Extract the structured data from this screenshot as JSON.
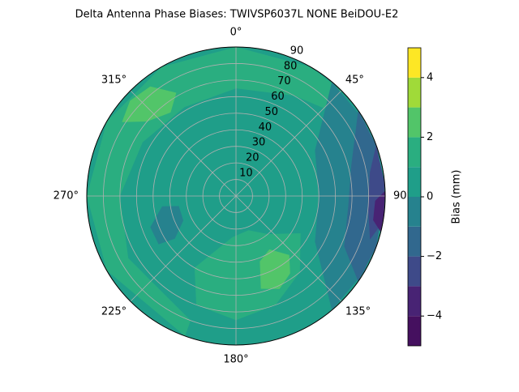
{
  "chart_data": {
    "type": "polar_contour",
    "title": "Delta Antenna Phase Biases: TWIVSP6037L     NONE BeiDOU-E2",
    "rlim": [
      0,
      90
    ],
    "rticks": [
      10,
      20,
      30,
      40,
      50,
      60,
      70,
      80,
      90
    ],
    "thetaticks": [
      {
        "value": 0,
        "label": "0°"
      },
      {
        "value": 45,
        "label": "45°"
      },
      {
        "value": 90,
        "label": "90°"
      },
      {
        "value": 135,
        "label": "135°"
      },
      {
        "value": 180,
        "label": "180°"
      },
      {
        "value": 225,
        "label": "225°"
      },
      {
        "value": 270,
        "label": "270°"
      },
      {
        "value": 315,
        "label": "315°"
      }
    ],
    "grid": true,
    "levels": [
      -5,
      -4,
      -3,
      -2,
      -1,
      0,
      1,
      2,
      3,
      4,
      5
    ],
    "colors": [
      "#45105f",
      "#482374",
      "#3e4a89",
      "#31688e",
      "#26828e",
      "#1f9e89",
      "#2aae80",
      "#52c569",
      "#a0da39",
      "#fde725"
    ],
    "background_value": 0.5,
    "regions": [
      {
        "value": 1.5,
        "theta": [
          200,
          240,
          270,
          300,
          330,
          0,
          30,
          45,
          45,
          30,
          0,
          330,
          300,
          270,
          240,
          200
        ],
        "r": [
          90,
          90,
          90,
          90,
          90,
          90,
          90,
          90,
          75,
          70,
          65,
          62,
          65,
          70,
          75,
          80
        ]
      },
      {
        "value": 2.5,
        "theta": [
          303,
          312,
          322,
          330,
          322,
          310
        ],
        "r": [
          82,
          86,
          84,
          72,
          64,
          70
        ]
      },
      {
        "value": 1.5,
        "theta": [
          120,
          140,
          160,
          185,
          210,
          200,
          180,
          160,
          140
        ],
        "r": [
          45,
          30,
          22,
          25,
          50,
          70,
          75,
          70,
          60
        ]
      },
      {
        "value": 2.5,
        "theta": [
          138,
          148,
          160,
          165,
          155,
          145
        ],
        "r": [
          48,
          38,
          42,
          58,
          62,
          57
        ]
      },
      {
        "value": -0.5,
        "theta": [
          40,
          60,
          90,
          120,
          140,
          120,
          90,
          60
        ],
        "r": [
          90,
          55,
          50,
          55,
          90,
          90,
          90,
          90
        ]
      },
      {
        "value": -1.5,
        "theta": [
          55,
          75,
          95,
          115,
          125,
          110,
          90,
          70
        ],
        "r": [
          90,
          72,
          68,
          72,
          90,
          90,
          90,
          90
        ]
      },
      {
        "value": -2.5,
        "theta": [
          70,
          80,
          95,
          108,
          100,
          85
        ],
        "r": [
          90,
          82,
          80,
          85,
          90,
          90
        ]
      },
      {
        "value": -3.5,
        "theta": [
          88,
          92,
          100,
          104,
          98
        ],
        "r": [
          90,
          84,
          84,
          90,
          90
        ]
      },
      {
        "value": -0.5,
        "theta": [
          235,
          245,
          260,
          262,
          250,
          238
        ],
        "r": [
          45,
          35,
          35,
          45,
          55,
          55
        ]
      }
    ],
    "colorbar_label": "Bias (mm)",
    "colorbar_ticks": [
      {
        "value": -4,
        "label": "−4"
      },
      {
        "value": -2,
        "label": "−2"
      },
      0,
      2,
      4
    ]
  }
}
